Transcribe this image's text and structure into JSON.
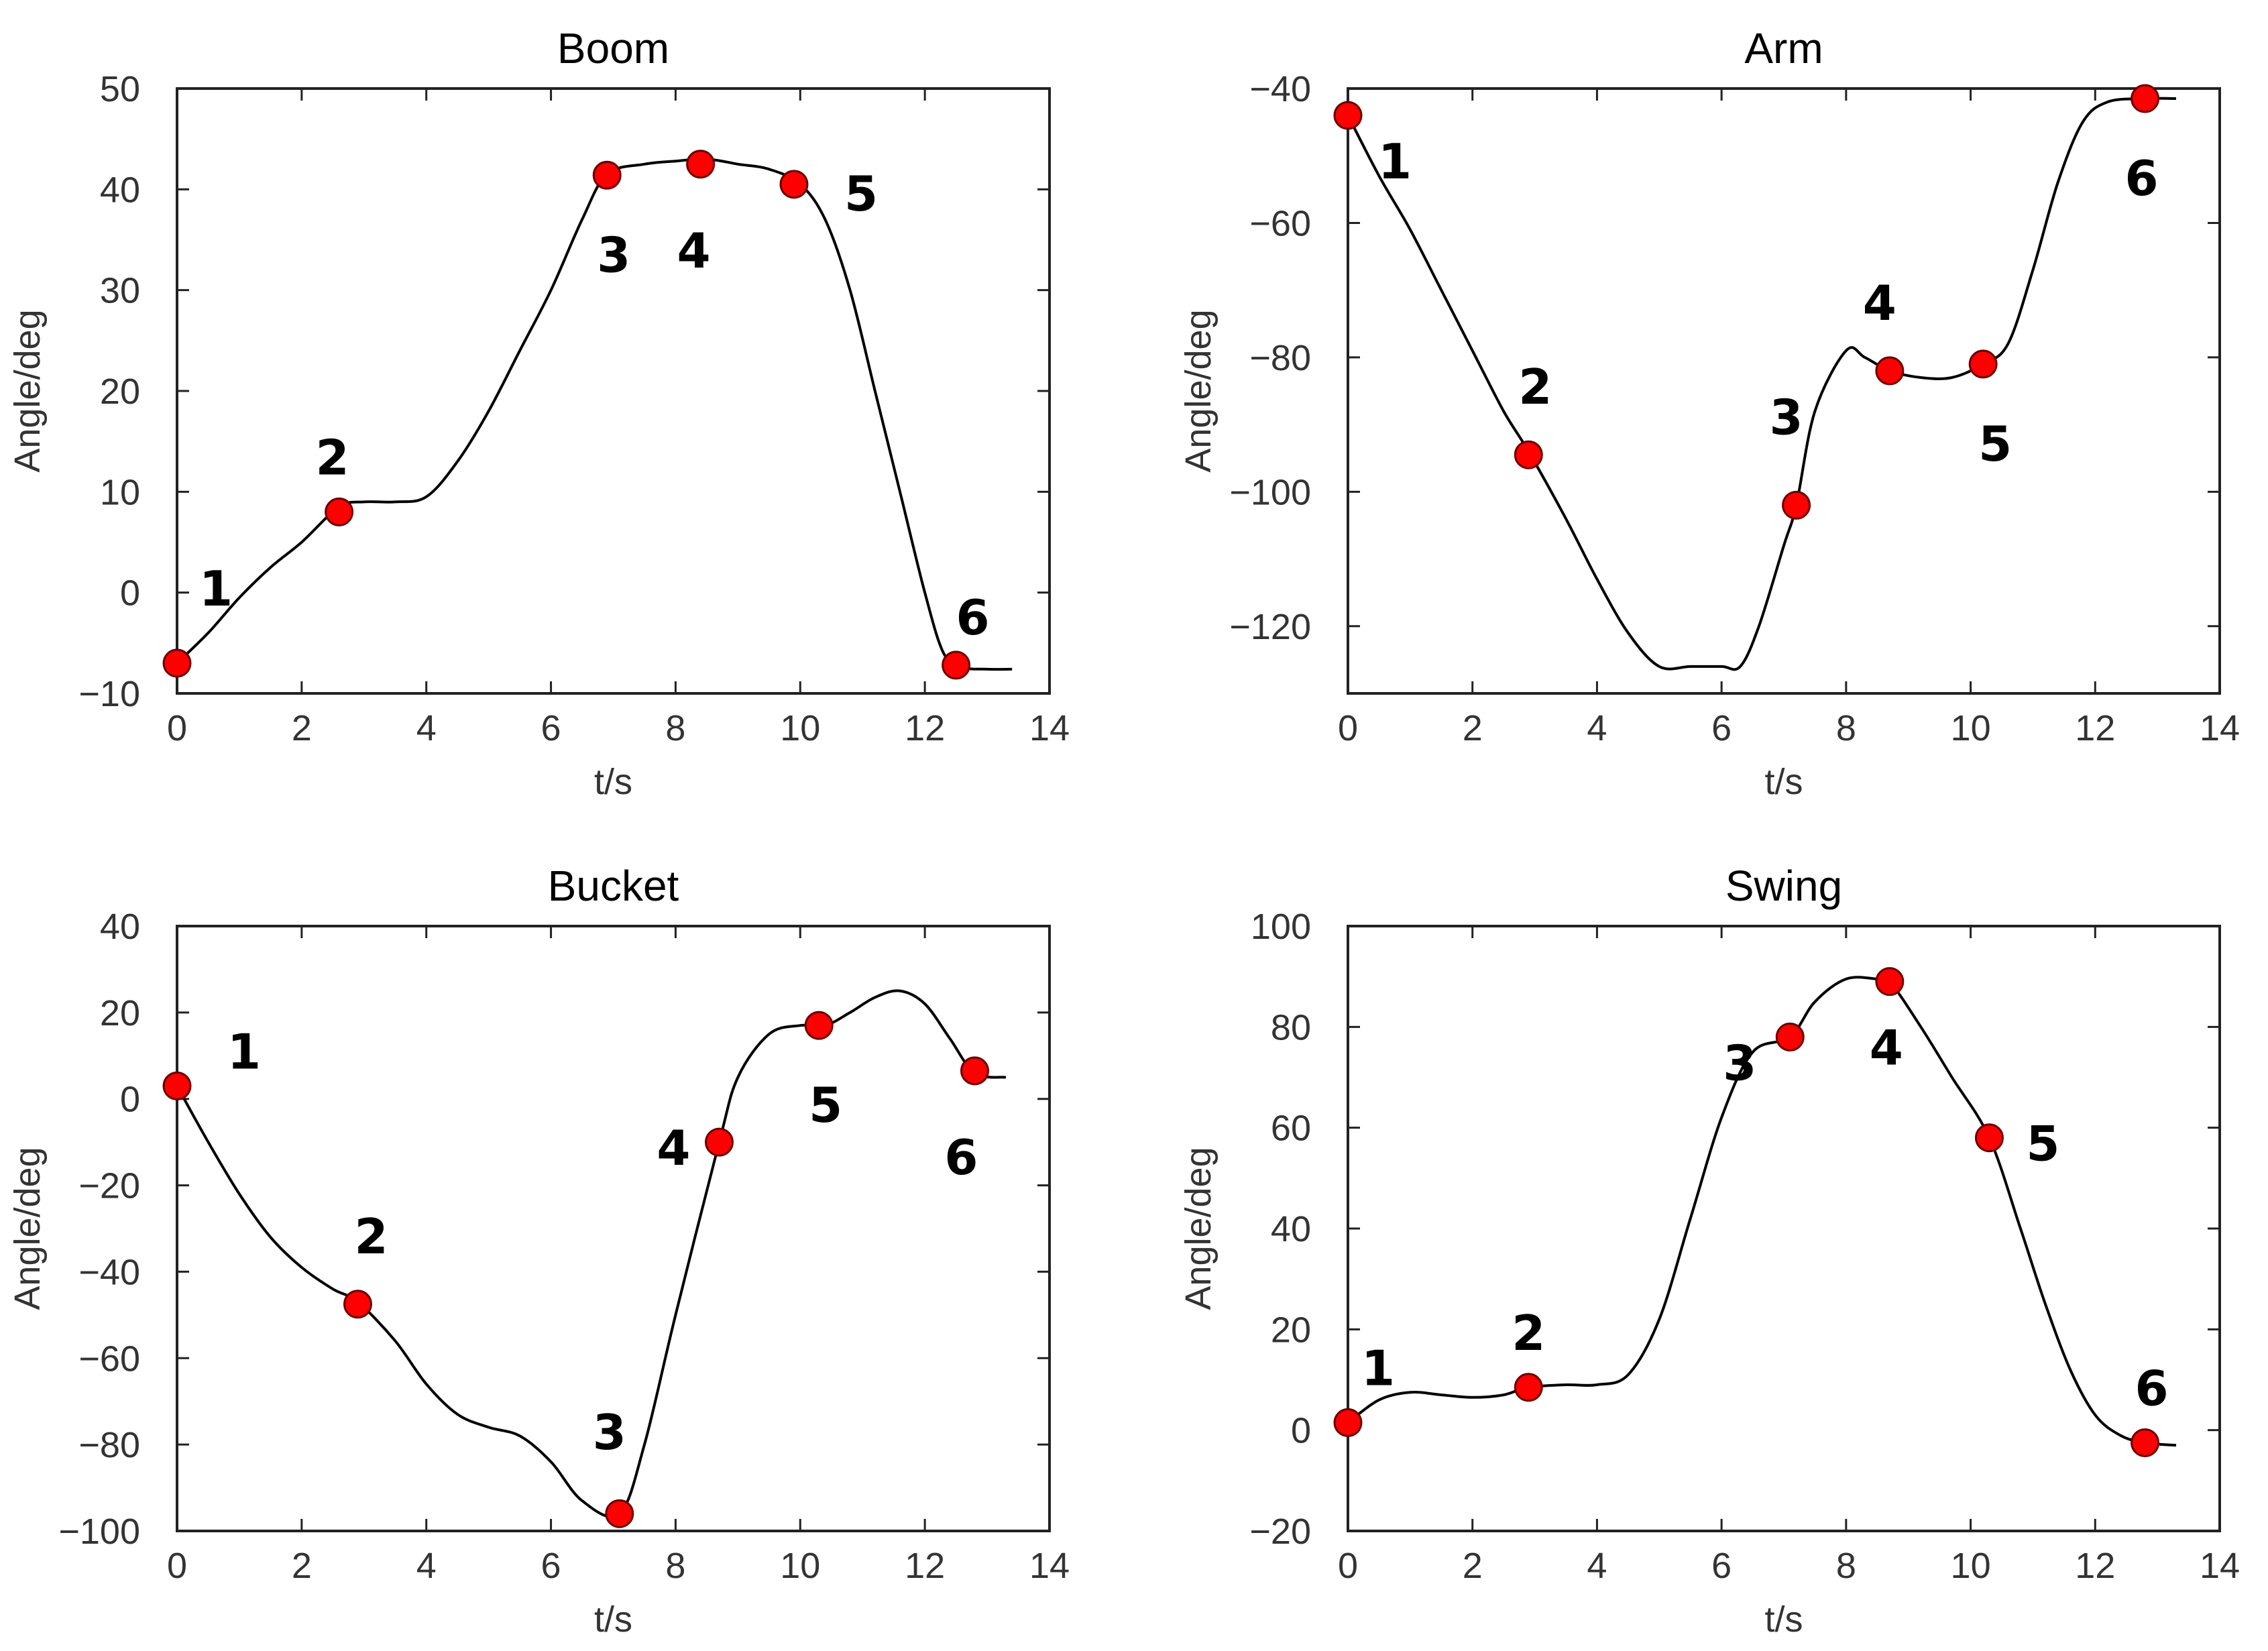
{
  "chart_data": [
    {
      "type": "line",
      "title": "Boom",
      "xlabel": "t/s",
      "ylabel": "Angle/deg",
      "xlim": [
        0,
        14
      ],
      "ylim": [
        -10,
        50
      ],
      "xticks": [
        0,
        2,
        4,
        6,
        8,
        10,
        12,
        14
      ],
      "yticks": [
        -10,
        0,
        10,
        20,
        30,
        40,
        50
      ],
      "xtick_labels": [
        "0",
        "2",
        "4",
        "6",
        "8",
        "10",
        "12",
        "14"
      ],
      "ytick_labels": [
        "−10",
        "0",
        "10",
        "20",
        "30",
        "40",
        "50"
      ],
      "curve": {
        "x": [
          0,
          0.5,
          1,
          1.5,
          2,
          2.6,
          3,
          3.5,
          4,
          4.5,
          5,
          5.5,
          6,
          6.5,
          6.9,
          7.5,
          8,
          8.5,
          9,
          9.5,
          10,
          10.4,
          10.8,
          11.2,
          11.6,
          12,
          12.3,
          12.6,
          13,
          13.4
        ],
        "y": [
          -7,
          -4,
          -0.5,
          2.5,
          5,
          8.5,
          9,
          9,
          9.5,
          13,
          18,
          24,
          30,
          37,
          41.5,
          42.5,
          42.8,
          43,
          42.5,
          42,
          40.5,
          37,
          30,
          20,
          10,
          0,
          -6,
          -7.4,
          -7.6,
          -7.6
        ]
      },
      "points": {
        "x": [
          0,
          2.6,
          6.9,
          8.4,
          9.9,
          12.5
        ],
        "y": [
          -7,
          8,
          41.4,
          42.5,
          40.5,
          -7.2
        ],
        "labels": [
          "1",
          "2",
          "3",
          "4",
          "5",
          "6"
        ]
      }
    },
    {
      "type": "line",
      "title": "Arm",
      "xlabel": "t/s",
      "ylabel": "Angle/deg",
      "xlim": [
        0,
        14
      ],
      "ylim": [
        -130,
        -40
      ],
      "xticks": [
        0,
        2,
        4,
        6,
        8,
        10,
        12,
        14
      ],
      "yticks": [
        -120,
        -100,
        -80,
        -60,
        -40
      ],
      "xtick_labels": [
        "0",
        "2",
        "4",
        "6",
        "8",
        "10",
        "12",
        "14"
      ],
      "ytick_labels": [
        "−120",
        "−100",
        "−80",
        "−60",
        "−40"
      ],
      "curve": {
        "x": [
          0,
          0.5,
          1,
          1.5,
          2,
          2.5,
          2.9,
          3.5,
          4,
          4.5,
          5,
          5.5,
          6,
          6.3,
          6.6,
          7,
          7.2,
          7.5,
          8,
          8.3,
          8.7,
          9.2,
          9.7,
          10.2,
          10.6,
          11,
          11.4,
          11.8,
          12.2,
          12.8,
          13.3
        ],
        "y": [
          -44,
          -53,
          -61,
          -70,
          -79,
          -88,
          -94,
          -104,
          -113,
          -121,
          -126,
          -126,
          -126,
          -126,
          -120,
          -108,
          -102,
          -88,
          -79,
          -80,
          -82,
          -83,
          -83,
          -81,
          -78,
          -67,
          -54,
          -45,
          -42,
          -41.5,
          -41.5
        ]
      },
      "points": {
        "x": [
          0,
          2.9,
          7.2,
          8.7,
          10.2,
          12.8
        ],
        "y": [
          -44,
          -94.5,
          -102,
          -82,
          -81,
          -41.5
        ],
        "labels": [
          "1",
          "2",
          "3",
          "4",
          "5",
          "6"
        ]
      }
    },
    {
      "type": "line",
      "title": "Bucket",
      "xlabel": "t/s",
      "ylabel": "Angle/deg",
      "xlim": [
        0,
        14
      ],
      "ylim": [
        -100,
        40
      ],
      "xticks": [
        0,
        2,
        4,
        6,
        8,
        10,
        12,
        14
      ],
      "yticks": [
        -100,
        -80,
        -60,
        -40,
        -20,
        0,
        20,
        40
      ],
      "xtick_labels": [
        "0",
        "2",
        "4",
        "6",
        "8",
        "10",
        "12",
        "14"
      ],
      "ytick_labels": [
        "−100",
        "−80",
        "−60",
        "−40",
        "−20",
        "0",
        "20",
        "40"
      ],
      "curve": {
        "x": [
          0,
          0.5,
          1,
          1.5,
          2,
          2.5,
          2.9,
          3.5,
          4,
          4.5,
          5,
          5.5,
          6,
          6.5,
          7.1,
          7.5,
          8,
          8.7,
          9,
          9.5,
          10,
          10.4,
          10.8,
          11.2,
          11.6,
          12,
          12.4,
          12.8,
          13.3
        ],
        "y": [
          3,
          -10,
          -22,
          -32,
          -39,
          -44,
          -47,
          -56,
          -66,
          -73,
          -76,
          -78,
          -84,
          -93,
          -96,
          -80,
          -50,
          -10,
          5,
          15,
          17,
          17,
          20,
          23.5,
          25,
          22,
          14,
          6,
          5
        ]
      },
      "points": {
        "x": [
          0,
          2.9,
          7.1,
          8.7,
          10.3,
          12.8
        ],
        "y": [
          3,
          -47.5,
          -96,
          -10,
          17,
          6.5
        ],
        "labels": [
          "1",
          "2",
          "3",
          "4",
          "5",
          "6"
        ]
      }
    },
    {
      "type": "line",
      "title": "Swing",
      "xlabel": "t/s",
      "ylabel": "Angle/deg",
      "xlim": [
        0,
        14
      ],
      "ylim": [
        -20,
        100
      ],
      "xticks": [
        0,
        2,
        4,
        6,
        8,
        10,
        12,
        14
      ],
      "yticks": [
        -20,
        0,
        20,
        40,
        60,
        80,
        100
      ],
      "xtick_labels": [
        "0",
        "2",
        "4",
        "6",
        "8",
        "10",
        "12",
        "14"
      ],
      "ytick_labels": [
        "−20",
        "0",
        "20",
        "40",
        "60",
        "80",
        "100"
      ],
      "curve": {
        "x": [
          0,
          0.5,
          1,
          1.5,
          2,
          2.5,
          2.9,
          3.5,
          4,
          4.5,
          5,
          5.5,
          6,
          6.5,
          7.1,
          7.5,
          8,
          8.5,
          8.7,
          9.2,
          9.7,
          10.3,
          10.8,
          11.2,
          11.6,
          12,
          12.4,
          12.8,
          13.3
        ],
        "y": [
          1.5,
          6,
          7.5,
          7,
          6.5,
          7,
          8.5,
          9,
          9,
          11,
          22,
          42,
          62,
          75,
          78,
          85,
          89.5,
          89.5,
          89,
          80,
          70,
          58,
          40,
          25,
          12,
          3,
          -1,
          -2.5,
          -3
        ]
      },
      "points": {
        "x": [
          0,
          2.9,
          7.1,
          8.7,
          10.3,
          12.8
        ],
        "y": [
          1.5,
          8.5,
          78,
          89,
          58,
          -2.5
        ],
        "labels": [
          "1",
          "2",
          "3",
          "4",
          "5",
          "6"
        ]
      }
    }
  ]
}
